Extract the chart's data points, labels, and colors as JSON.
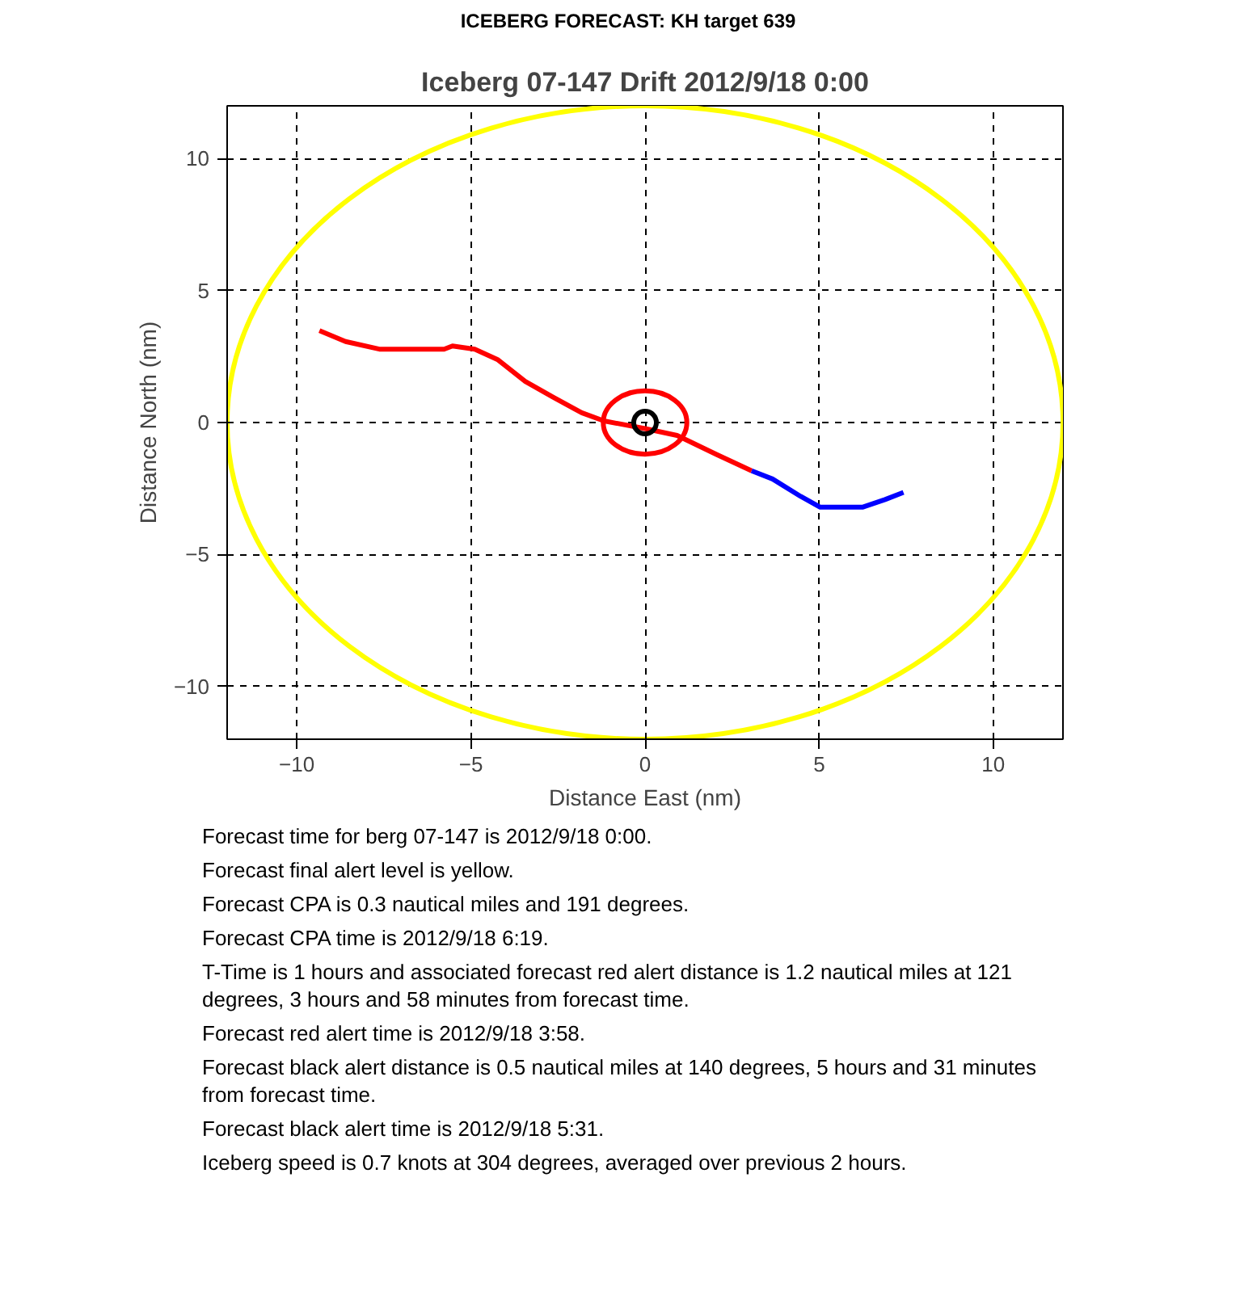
{
  "chart_data": {
    "type": "line",
    "title": "ICEBERG FORECAST:  KH target 639",
    "subtitle": "Iceberg 07-147 Drift 2012/9/18 0:00",
    "xlabel": "Distance East (nm)",
    "ylabel": "Distance North (nm)",
    "xlim": [
      -12,
      12
    ],
    "ylim": [
      -12,
      12
    ],
    "xticks": [
      -10,
      -5,
      0,
      5,
      10
    ],
    "yticks": [
      -10,
      -5,
      0,
      5,
      10
    ],
    "grid": true,
    "line_style": "solid",
    "series": [
      {
        "color": "#ff0000",
        "x": [
          -9.35,
          -8.6,
          -7.63,
          -5.77,
          -5.53,
          -4.89,
          -4.24,
          -3.44,
          -2.63,
          -1.82,
          -1.18,
          0,
          0.92,
          2.05,
          3.06
        ],
        "values": [
          3.48,
          3.07,
          2.78,
          2.78,
          2.9,
          2.78,
          2.39,
          1.56,
          0.95,
          0.37,
          0.06,
          -0.23,
          -0.49,
          -1.21,
          -1.83
        ]
      },
      {
        "type": "scatter",
        "color": "#000000",
        "x": [
          0
        ],
        "values": [
          0
        ]
      },
      {
        "color": "#0000ff",
        "x": [
          3.06,
          3.66,
          4.47,
          5.03,
          6.24,
          6.89,
          7.42
        ],
        "values": [
          -1.83,
          -2.14,
          -2.8,
          -3.21,
          -3.21,
          -2.92,
          -2.65
        ]
      }
    ],
    "annotations": [
      "Forecast time for berg 07-147 is 2012/9/18 0:00.",
      "Forecast final alert level is yellow.",
      "Forecast CPA is 0.3 nautical miles and 191 degrees.",
      "Forecast CPA time is 2012/9/18 6:19.",
      "T-Time is 1 hours and associated forecast red alert distance is 1.2 nautical miles at 121 degrees, 3 hours and 58 minutes from forecast time.",
      "Forecast red alert time is 2012/9/18 3:58.",
      "Forecast black alert distance is 0.5 nautical miles at 140 degrees, 5 hours and 31 minutes from forecast time.",
      "Forecast black alert time is 2012/9/18 5:31.",
      "Iceberg speed is 0.7 knots at 304 degrees, averaged over previous 2 hours."
    ]
  }
}
